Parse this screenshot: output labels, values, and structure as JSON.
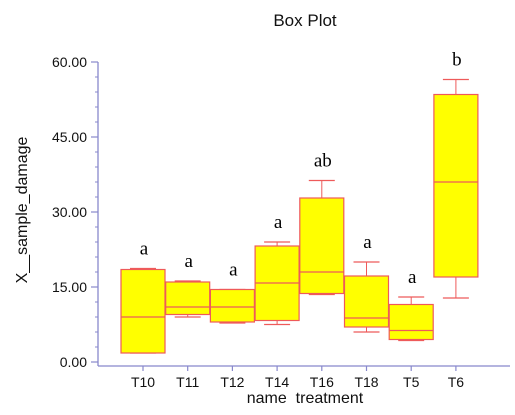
{
  "chart_data": {
    "type": "box",
    "title": "Box Plot",
    "xlabel": "name  treatment",
    "ylabel": "X__sample_damage",
    "ylim": [
      0,
      60
    ],
    "yticks": [
      "0.00",
      "15.00",
      "30.00",
      "45.00",
      "60.00"
    ],
    "ytick_values": [
      0,
      15,
      30,
      45,
      60
    ],
    "grid": false,
    "box_fill": "#ffff00",
    "box_stroke": "#ee5a5a",
    "axis_color": "#8888cc",
    "categories": [
      "T10",
      "T11",
      "T12",
      "T14",
      "T16",
      "T18",
      "T5",
      "T6"
    ],
    "boxes": [
      {
        "label": "T10",
        "min": 1.8,
        "q1": 1.8,
        "median": 9.0,
        "q3": 18.5,
        "max": 18.7,
        "letter": "a"
      },
      {
        "label": "T11",
        "min": 9.0,
        "q1": 9.5,
        "median": 11.0,
        "q3": 16.0,
        "max": 16.2,
        "letter": "a"
      },
      {
        "label": "T12",
        "min": 7.8,
        "q1": 8.0,
        "median": 11.0,
        "q3": 14.5,
        "max": 14.5,
        "letter": "a"
      },
      {
        "label": "T14",
        "min": 7.5,
        "q1": 8.3,
        "median": 15.8,
        "q3": 23.2,
        "max": 24.0,
        "letter": "a"
      },
      {
        "label": "T16",
        "min": 13.5,
        "q1": 13.7,
        "median": 18.0,
        "q3": 32.8,
        "max": 36.3,
        "letter": "ab"
      },
      {
        "label": "T18",
        "min": 6.0,
        "q1": 7.0,
        "median": 8.8,
        "q3": 17.2,
        "max": 20.0,
        "letter": "a"
      },
      {
        "label": "T5",
        "min": 4.3,
        "q1": 4.5,
        "median": 6.3,
        "q3": 11.5,
        "max": 13.0,
        "letter": "a"
      },
      {
        "label": "T6",
        "min": 12.8,
        "q1": 17.0,
        "median": 36.0,
        "q3": 53.5,
        "max": 56.5,
        "letter": "b"
      }
    ]
  }
}
